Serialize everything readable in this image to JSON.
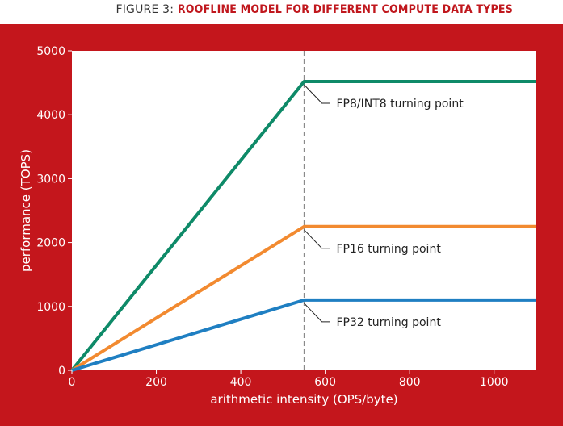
{
  "figure": {
    "prefix": "FIGURE 3:",
    "title": "ROOFLINE MODEL FOR DIFFERENT COMPUTE DATA TYPES"
  },
  "colors": {
    "panel": "#c4161c",
    "plot_bg": "#ffffff",
    "turning_line": "#8a8a8a"
  },
  "chart_data": {
    "type": "line",
    "title": "ROOFLINE MODEL FOR DIFFERENT COMPUTE DATA TYPES",
    "xlabel": "arithmetic intensity (OPS/byte)",
    "ylabel": "performance (TOPS)",
    "xlim": [
      0,
      1100
    ],
    "ylim": [
      0,
      5000
    ],
    "x_ticks": [
      0,
      200,
      400,
      600,
      800,
      1000
    ],
    "y_ticks": [
      0,
      1000,
      2000,
      3000,
      4000,
      5000
    ],
    "grid": false,
    "turning_point_x": 550,
    "series": [
      {
        "color": "#0e8a68",
        "x": [
          0,
          550,
          1100
        ],
        "y": [
          0,
          4520,
          4520
        ]
      },
      {
        "color": "#f28a30",
        "x": [
          0,
          550,
          1100
        ],
        "y": [
          0,
          2250,
          2250
        ]
      },
      {
        "color": "#1f7fc2",
        "x": [
          0,
          550,
          1100
        ],
        "y": [
          0,
          1100,
          1100
        ]
      }
    ],
    "annotations": [
      {
        "text": "FP8/INT8 turning point",
        "x": 550,
        "y": 4520
      },
      {
        "text": "FP16 turning point",
        "x": 550,
        "y": 2250
      },
      {
        "text": "FP32 turning point",
        "x": 550,
        "y": 1100
      }
    ]
  }
}
